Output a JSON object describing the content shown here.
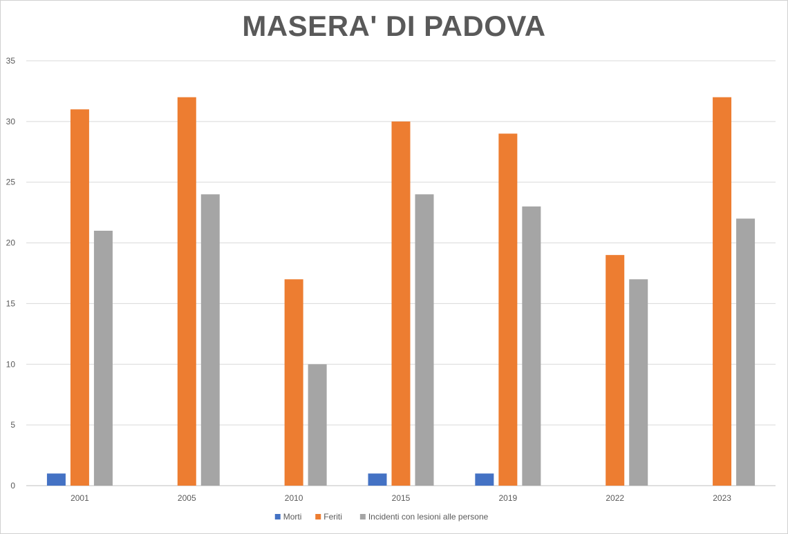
{
  "chart_data": {
    "type": "bar",
    "title": "MASERA' DI PADOVA",
    "xlabel": "",
    "ylabel": "",
    "categories": [
      "2001",
      "2005",
      "2010",
      "2015",
      "2019",
      "2022",
      "2023"
    ],
    "ylim": [
      0,
      35
    ],
    "yticks": [
      0,
      5,
      10,
      15,
      20,
      25,
      30,
      35
    ],
    "grid": true,
    "legend_position": "bottom",
    "series": [
      {
        "name": "Morti",
        "color": "#4472c4",
        "values": [
          1,
          0,
          0,
          1,
          1,
          0,
          0
        ]
      },
      {
        "name": "Feriti",
        "color": "#ed7d31",
        "values": [
          31,
          32,
          17,
          30,
          29,
          19,
          32
        ]
      },
      {
        "name": "Incidenti con lesioni alle persone",
        "color": "#a5a5a5",
        "values": [
          21,
          24,
          10,
          24,
          23,
          17,
          22
        ]
      }
    ]
  }
}
